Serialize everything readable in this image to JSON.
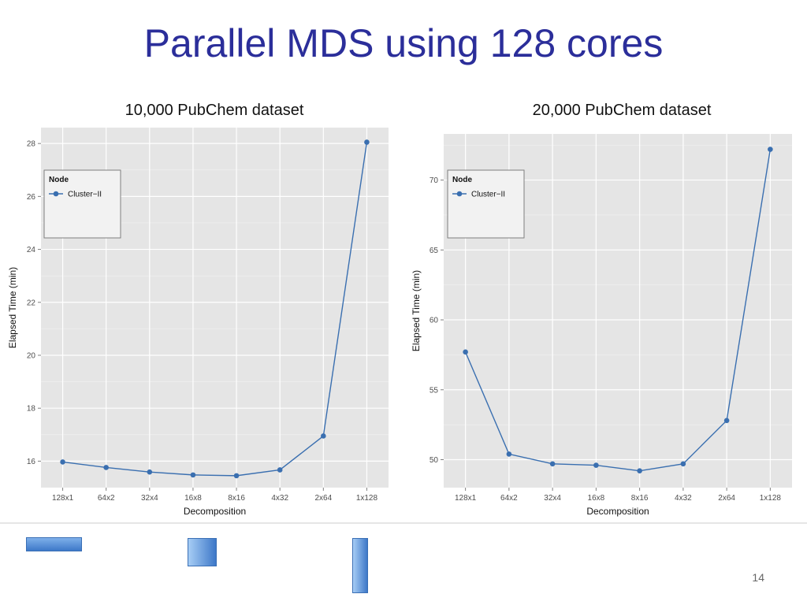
{
  "slide": {
    "title": "Parallel MDS using 128 cores",
    "page_number": "14"
  },
  "chart_data": [
    {
      "type": "line",
      "caption": "10,000 PubChem dataset",
      "xlabel": "Decomposition",
      "ylabel": "Elapsed Time (min)",
      "categories": [
        "128x1",
        "64x2",
        "32x4",
        "16x8",
        "8x16",
        "4x32",
        "2x64",
        "1x128"
      ],
      "yticks": [
        16,
        18,
        20,
        22,
        24,
        26,
        28
      ],
      "ylim": [
        15.0,
        28.6
      ],
      "legend": {
        "title": "Node",
        "position": "top-left"
      },
      "grid": true,
      "series": [
        {
          "name": "Cluster−II",
          "color": "#3a6fb0",
          "values": [
            15.97,
            15.76,
            15.59,
            15.48,
            15.45,
            15.67,
            16.95,
            28.05
          ]
        }
      ]
    },
    {
      "type": "line",
      "caption": "20,000 PubChem dataset",
      "xlabel": "Decomposition",
      "ylabel": "Elapsed Time (min)",
      "categories": [
        "128x1",
        "64x2",
        "32x4",
        "16x8",
        "8x16",
        "4x32",
        "2x64",
        "1x128"
      ],
      "yticks": [
        50,
        55,
        60,
        65,
        70
      ],
      "ylim": [
        48.0,
        73.3
      ],
      "legend": {
        "title": "Node",
        "position": "top-left"
      },
      "grid": true,
      "series": [
        {
          "name": "Cluster−II",
          "color": "#3a6fb0",
          "values": [
            57.7,
            50.4,
            49.7,
            49.6,
            49.2,
            49.7,
            52.8,
            72.2
          ]
        }
      ]
    }
  ]
}
